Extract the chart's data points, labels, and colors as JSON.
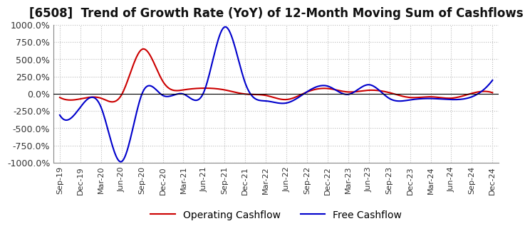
{
  "title": "[6508]  Trend of Growth Rate (YoY) of 12-Month Moving Sum of Cashflows",
  "ylim": [
    -1000,
    1000
  ],
  "yticks": [
    -1000,
    -750,
    -500,
    -250,
    0,
    250,
    500,
    750,
    1000
  ],
  "ytick_labels": [
    "-1000.0%",
    "-750.0%",
    "-500.0%",
    "-250.0%",
    "0.0%",
    "250.0%",
    "500.0%",
    "750.0%",
    "1000.0%"
  ],
  "background_color": "#ffffff",
  "grid_color": "#bbbbbb",
  "title_fontsize": 12,
  "legend_entries": [
    "Operating Cashflow",
    "Free Cashflow"
  ],
  "line_colors": [
    "#cc0000",
    "#0000cc"
  ],
  "x_labels": [
    "Sep-19",
    "Dec-19",
    "Mar-20",
    "Jun-20",
    "Sep-20",
    "Dec-20",
    "Mar-21",
    "Jun-21",
    "Sep-21",
    "Dec-21",
    "Mar-22",
    "Jun-22",
    "Sep-22",
    "Dec-22",
    "Mar-23",
    "Jun-23",
    "Sep-23",
    "Dec-23",
    "Mar-24",
    "Jun-24",
    "Sep-24",
    "Dec-24"
  ],
  "operating_cashflow": [
    -55,
    -75,
    -65,
    -15,
    645,
    180,
    55,
    80,
    55,
    -5,
    -25,
    -85,
    25,
    75,
    25,
    50,
    15,
    -55,
    -45,
    -65,
    5,
    15
  ],
  "free_cashflow": [
    -310,
    -195,
    -195,
    -985,
    5,
    -25,
    -5,
    30,
    968,
    155,
    -105,
    -135,
    28,
    110,
    -10,
    130,
    -70,
    -90,
    -70,
    -85,
    -45,
    195
  ]
}
